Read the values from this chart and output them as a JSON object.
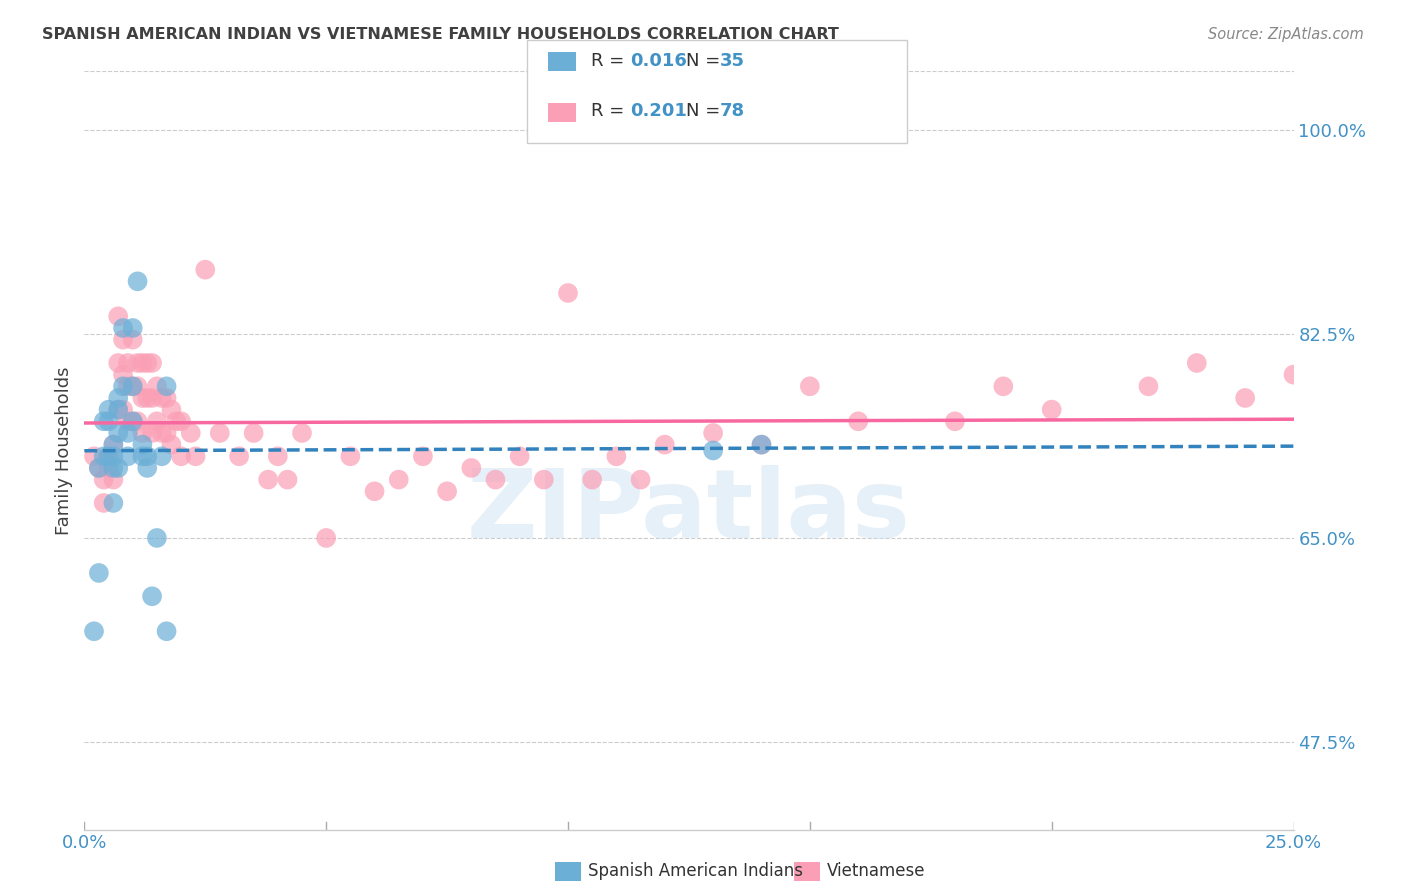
{
  "title": "SPANISH AMERICAN INDIAN VS VIETNAMESE FAMILY HOUSEHOLDS CORRELATION CHART",
  "source": "Source: ZipAtlas.com",
  "ylabel": "Family Households",
  "ytick_vals": [
    1.0,
    0.825,
    0.65,
    0.475
  ],
  "ytick_labels": [
    "100.0%",
    "82.5%",
    "65.0%",
    "47.5%"
  ],
  "xtick_vals": [
    0.0,
    0.05,
    0.1,
    0.15,
    0.2,
    0.25
  ],
  "xtick_labels": [
    "0.0%",
    "",
    "",
    "",
    "",
    "25.0%"
  ],
  "watermark": "ZIPatlas",
  "blue_color": "#6baed6",
  "pink_color": "#fa9fb5",
  "blue_line_color": "#3182bd",
  "pink_line_color": "#f768a1",
  "axis_label_color": "#4292c6",
  "title_color": "#404040",
  "source_color": "#888888",
  "legend_r1_val": "0.016",
  "legend_n1_val": "35",
  "legend_r2_val": "0.201",
  "legend_n2_val": "78",
  "legend_label1": "Spanish American Indians",
  "legend_label2": "Vietnamese",
  "sai_x": [
    0.002,
    0.003,
    0.003,
    0.004,
    0.004,
    0.005,
    0.005,
    0.005,
    0.006,
    0.006,
    0.006,
    0.006,
    0.007,
    0.007,
    0.007,
    0.007,
    0.008,
    0.008,
    0.009,
    0.009,
    0.01,
    0.01,
    0.01,
    0.011,
    0.012,
    0.012,
    0.013,
    0.013,
    0.014,
    0.015,
    0.016,
    0.017,
    0.017,
    0.13,
    0.14
  ],
  "sai_y": [
    0.57,
    0.71,
    0.62,
    0.75,
    0.72,
    0.76,
    0.75,
    0.72,
    0.73,
    0.72,
    0.71,
    0.68,
    0.77,
    0.76,
    0.74,
    0.71,
    0.83,
    0.78,
    0.74,
    0.72,
    0.83,
    0.78,
    0.75,
    0.87,
    0.73,
    0.72,
    0.72,
    0.71,
    0.6,
    0.65,
    0.72,
    0.78,
    0.57,
    0.725,
    0.73
  ],
  "viet_x": [
    0.002,
    0.003,
    0.004,
    0.004,
    0.005,
    0.005,
    0.006,
    0.006,
    0.007,
    0.007,
    0.007,
    0.008,
    0.008,
    0.008,
    0.009,
    0.009,
    0.009,
    0.01,
    0.01,
    0.01,
    0.011,
    0.011,
    0.011,
    0.012,
    0.012,
    0.012,
    0.013,
    0.013,
    0.014,
    0.014,
    0.014,
    0.015,
    0.015,
    0.016,
    0.016,
    0.017,
    0.017,
    0.018,
    0.018,
    0.019,
    0.02,
    0.02,
    0.022,
    0.023,
    0.025,
    0.028,
    0.032,
    0.035,
    0.038,
    0.04,
    0.042,
    0.045,
    0.05,
    0.055,
    0.06,
    0.065,
    0.07,
    0.075,
    0.08,
    0.085,
    0.09,
    0.095,
    0.1,
    0.105,
    0.11,
    0.115,
    0.12,
    0.13,
    0.14,
    0.15,
    0.16,
    0.18,
    0.19,
    0.2,
    0.22,
    0.23,
    0.24,
    0.25
  ],
  "viet_y": [
    0.72,
    0.71,
    0.7,
    0.68,
    0.72,
    0.71,
    0.73,
    0.7,
    0.84,
    0.8,
    0.76,
    0.82,
    0.79,
    0.76,
    0.8,
    0.78,
    0.75,
    0.82,
    0.78,
    0.75,
    0.8,
    0.78,
    0.75,
    0.8,
    0.77,
    0.74,
    0.8,
    0.77,
    0.8,
    0.77,
    0.74,
    0.78,
    0.75,
    0.77,
    0.74,
    0.77,
    0.74,
    0.76,
    0.73,
    0.75,
    0.75,
    0.72,
    0.74,
    0.72,
    0.88,
    0.74,
    0.72,
    0.74,
    0.7,
    0.72,
    0.7,
    0.74,
    0.65,
    0.72,
    0.69,
    0.7,
    0.72,
    0.69,
    0.71,
    0.7,
    0.72,
    0.7,
    0.86,
    0.7,
    0.72,
    0.7,
    0.73,
    0.74,
    0.73,
    0.78,
    0.75,
    0.75,
    0.78,
    0.76,
    0.78,
    0.8,
    0.77,
    0.79
  ],
  "xlim": [
    0.0,
    0.25
  ],
  "ylim": [
    0.4,
    1.05
  ]
}
